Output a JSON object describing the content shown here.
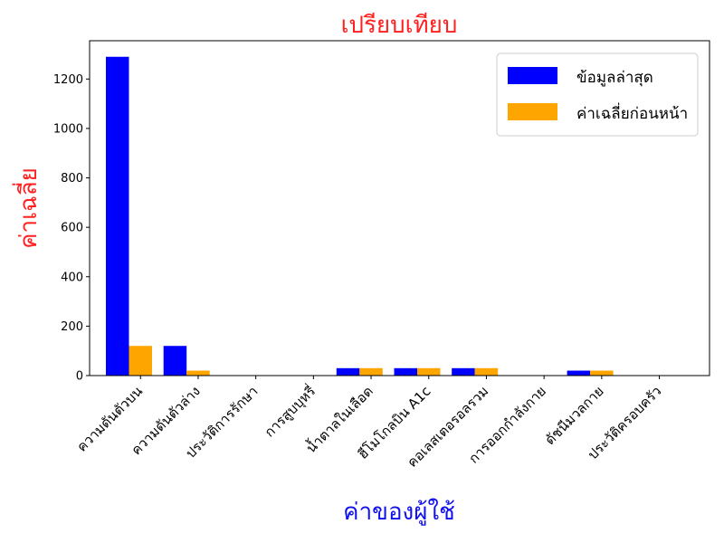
{
  "chart_data": {
    "type": "bar",
    "title": "เปรียบเทียบ",
    "title_color": "#ff2020",
    "xlabel": "ค่าของผู้ใช้",
    "xlabel_color": "#1010ee",
    "ylabel": "ค่าเฉลี่ย",
    "ylabel_color": "#ff2020",
    "categories": [
      "ความดันตัวบน",
      "ความดันตัวล่าง",
      "ประวัติการรักษา",
      "การสูบบุหรี่",
      "น้ำตาลในเลือด",
      "ฮีโมโกลบิน A1c",
      "คอเลสเตอรอลรวม",
      "การออกกำลังกาย",
      "ดัชนีมวลกาย",
      "ประวัติครอบครัว"
    ],
    "series": [
      {
        "name": "ข้อมูลล่าสุด",
        "color": "#0000ff",
        "values": [
          1290,
          120,
          0,
          0,
          30,
          30,
          30,
          0,
          20,
          0
        ]
      },
      {
        "name": "ค่าเฉลี่ยก่อนหน้า",
        "color": "#ffa500",
        "values": [
          120,
          20,
          0,
          0,
          30,
          30,
          30,
          0,
          20,
          0
        ]
      }
    ],
    "ylim": [
      0,
      1355
    ],
    "yticks": [
      0,
      200,
      400,
      600,
      800,
      1000,
      1200
    ],
    "grid": false,
    "legend_position": "top-right"
  }
}
